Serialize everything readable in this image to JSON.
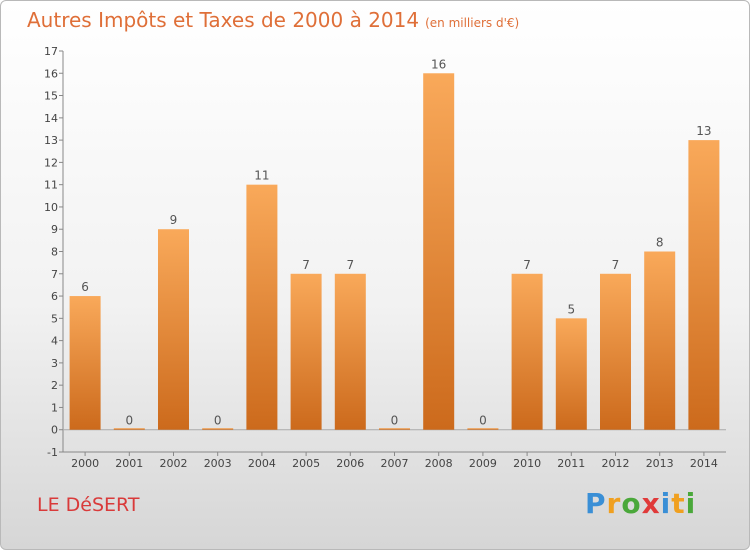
{
  "title": "Autres Impôts et Taxes de 2000 à 2014",
  "unit_note": "(en milliers d'€)",
  "commune": "LE DéSERT",
  "logo": {
    "letters": [
      "P",
      "r",
      "o",
      "x",
      "i",
      "t",
      "i"
    ],
    "colors": [
      "#3a8fd6",
      "#f0a020",
      "#4aa83a",
      "#e03a3a",
      "#3a8fd6",
      "#f0a020",
      "#4aa83a"
    ]
  },
  "colors": {
    "title": "#df6f38",
    "commune": "#d93a3a",
    "bar_top": "#f9a95a",
    "bar_bottom": "#cc6a1c"
  },
  "chart_data": {
    "type": "bar",
    "categories": [
      "2000",
      "2001",
      "2002",
      "2003",
      "2004",
      "2005",
      "2006",
      "2007",
      "2008",
      "2009",
      "2010",
      "2011",
      "2012",
      "2013",
      "2014"
    ],
    "values": [
      6,
      0,
      9,
      0,
      11,
      7,
      7,
      0,
      16,
      0,
      7,
      5,
      7,
      8,
      13
    ],
    "data_labels": [
      "6",
      "0",
      "9",
      "0",
      "11",
      "7",
      "7",
      "0",
      "16",
      "0",
      "7",
      "5",
      "7",
      "8",
      "13"
    ],
    "y_ticks": [
      "-1",
      "0",
      "1",
      "2",
      "3",
      "4",
      "5",
      "6",
      "7",
      "8",
      "9",
      "10",
      "11",
      "12",
      "13",
      "14",
      "15",
      "16",
      "17"
    ],
    "ylim": [
      -1,
      17
    ],
    "grid": false,
    "xlabel": "",
    "ylabel": ""
  }
}
